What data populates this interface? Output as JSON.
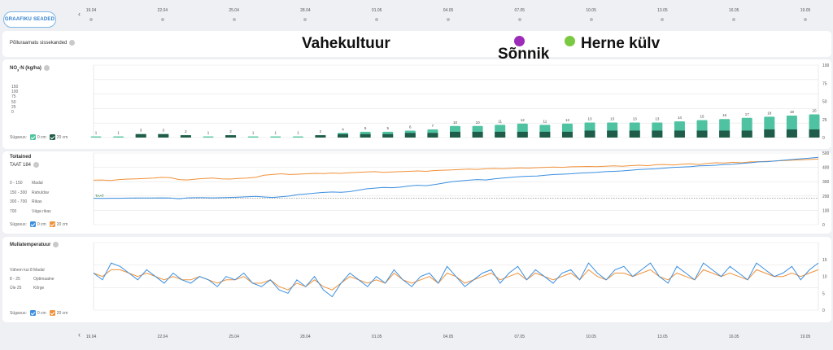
{
  "settings_button": "GRAAFIKU SEADED",
  "dates": [
    "19.04",
    "22.04",
    "25.04",
    "28.04",
    "01.05",
    "04.05",
    "07.05",
    "10.05",
    "13.05",
    "16.05",
    "19.05"
  ],
  "events": {
    "title": "Põlluraamatu sissekanded",
    "vahekultuur": "Vahekultuur",
    "sonnik": "Sõnnik",
    "herne": "Herne külv"
  },
  "no3": {
    "title_main": "NO",
    "title_sub": "3",
    "title_rest": "-N (kg/ha)",
    "left_ticks": [
      "150",
      "100",
      "75",
      "50",
      "25",
      "0"
    ],
    "right_ticks": [
      "100",
      "75",
      "50",
      "25",
      "0"
    ],
    "depth_label": "Sügavus:",
    "depth_0": "0 cm",
    "depth_20": "20 cm",
    "bar_labels": [
      "1",
      "1",
      "3",
      "3",
      "2",
      "1",
      "2",
      "1",
      "1",
      "1",
      "2",
      "4",
      "5",
      "5",
      "6",
      "7",
      "10",
      "10",
      "11",
      "12",
      "11",
      "12",
      "13",
      "13",
      "13",
      "13",
      "14",
      "15",
      "16",
      "17",
      "18",
      "19",
      "20"
    ],
    "values_0": [
      1,
      1,
      3,
      3,
      2,
      1,
      2,
      1,
      1,
      1,
      2,
      4,
      5,
      5,
      6,
      7,
      10,
      10,
      11,
      12,
      11,
      12,
      13,
      13,
      13,
      13,
      14,
      15,
      16,
      17,
      18,
      19,
      20
    ],
    "values_20": [
      0,
      0,
      3,
      3,
      2,
      0,
      2,
      0,
      0,
      0,
      2,
      3,
      3,
      3,
      4,
      4,
      5,
      5,
      5,
      5,
      5,
      5,
      6,
      6,
      6,
      6,
      6,
      6,
      6,
      6,
      7,
      7,
      7
    ],
    "colors": {
      "c0": "#4fc3a1",
      "c20": "#1f5c4a"
    }
  },
  "toitained": {
    "title": "Toitained",
    "taat": "TAAT 184",
    "taat_line": "TAAT",
    "legend": [
      {
        "range": "0 - 150",
        "level": "Madal"
      },
      {
        "range": "150 - 300",
        "level": "Rahuldav"
      },
      {
        "range": "300 - 700",
        "level": "Rikas"
      },
      {
        "range": "700",
        "level": "Väga rikas"
      }
    ],
    "right_ticks": [
      "500",
      "400",
      "300",
      "200",
      "100",
      "0"
    ],
    "depth_label": "Sügavus:",
    "depth_0": "0 cm",
    "depth_20": "20 cm",
    "series_0": [
      184,
      183,
      184,
      184,
      185,
      186,
      186,
      186,
      187,
      186,
      180,
      187,
      188,
      188,
      187,
      188,
      190,
      192,
      195,
      197,
      193,
      190,
      195,
      200,
      210,
      215,
      220,
      225,
      228,
      226,
      230,
      240,
      250,
      255,
      260,
      258,
      262,
      270,
      275,
      272,
      280,
      290,
      300,
      305,
      310,
      315,
      312,
      320,
      325,
      330,
      335,
      338,
      340,
      345,
      350,
      352,
      355,
      360,
      362,
      365,
      370,
      372,
      375,
      380,
      385,
      388,
      390,
      395,
      400,
      402,
      405,
      410,
      412,
      415,
      420,
      422,
      428,
      432,
      438,
      440,
      445,
      450,
      455,
      460,
      465,
      470
    ],
    "series_20": [
      310,
      312,
      308,
      315,
      318,
      320,
      322,
      325,
      330,
      328,
      315,
      312,
      318,
      322,
      325,
      320,
      318,
      322,
      325,
      330,
      345,
      350,
      355,
      350,
      352,
      355,
      358,
      356,
      360,
      358,
      362,
      365,
      368,
      370,
      365,
      368,
      370,
      372,
      375,
      372,
      378,
      380,
      382,
      385,
      388,
      386,
      390,
      392,
      390,
      394,
      396,
      395,
      398,
      400,
      402,
      400,
      404,
      405,
      406,
      405,
      408,
      410,
      408,
      412,
      415,
      412,
      418,
      420,
      416,
      422,
      425,
      420,
      428,
      432,
      430,
      435,
      432,
      438,
      440,
      442,
      445,
      448,
      450,
      452,
      455,
      458
    ],
    "colors": {
      "c0": "#3b8fe0",
      "c20": "#f0923a"
    }
  },
  "temperatuur": {
    "title": "Mullatemperatuur",
    "legend": [
      {
        "range": "Vähem kui 8",
        "level": "Madal"
      },
      {
        "range": "8 - 25",
        "level": "Optimaalne"
      },
      {
        "range": "Üle 25",
        "level": "Kõrge"
      }
    ],
    "right_ticks": [
      "15",
      "10",
      "5",
      "0"
    ],
    "depth_label": "Sügavus:",
    "depth_0": "0 cm",
    "depth_20": "20 cm",
    "series_0": [
      11,
      9,
      14,
      13,
      11,
      9,
      12,
      10,
      8,
      11,
      9,
      8,
      10,
      9,
      7,
      10,
      9,
      11,
      8,
      7,
      9,
      6,
      5,
      9,
      7,
      10,
      6,
      4,
      8,
      11,
      9,
      7,
      10,
      8,
      12,
      9,
      7,
      10,
      11,
      8,
      13,
      10,
      7,
      9,
      11,
      12,
      8,
      11,
      13,
      9,
      12,
      10,
      8,
      11,
      12,
      9,
      14,
      11,
      9,
      12,
      13,
      10,
      12,
      14,
      10,
      8,
      13,
      11,
      9,
      14,
      12,
      10,
      13,
      11,
      9,
      14,
      12,
      10,
      11,
      13,
      9,
      12,
      14
    ],
    "series_20": [
      11,
      10,
      12,
      12,
      11,
      10,
      11,
      10,
      9,
      10,
      9,
      9,
      10,
      9,
      8,
      9,
      9,
      10,
      8,
      8,
      9,
      7,
      6,
      8,
      7,
      9,
      7,
      6,
      8,
      10,
      9,
      8,
      9,
      8,
      11,
      9,
      8,
      9,
      10,
      8,
      11,
      10,
      8,
      9,
      10,
      11,
      9,
      10,
      11,
      9,
      11,
      10,
      9,
      10,
      11,
      9,
      12,
      10,
      9,
      11,
      11,
      10,
      11,
      12,
      10,
      9,
      11,
      10,
      9,
      12,
      11,
      10,
      11,
      10,
      9,
      12,
      11,
      10,
      10,
      11,
      10,
      11,
      12
    ],
    "colors": {
      "c0": "#3b8fe0",
      "c20": "#f0923a"
    }
  }
}
